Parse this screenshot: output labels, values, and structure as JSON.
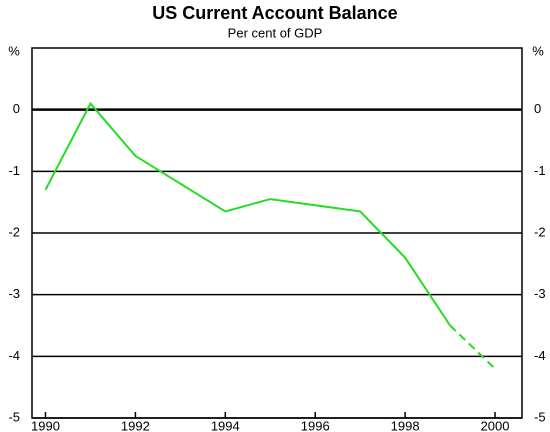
{
  "chart_data": {
    "type": "line",
    "title": "US Current Account Balance",
    "subtitle": "Per cent of GDP",
    "y_unit": "%",
    "x": [
      1990,
      1991,
      1992,
      1993,
      1994,
      1995,
      1996,
      1997,
      1998,
      1999,
      2000
    ],
    "series": [
      {
        "color": "#22dd22",
        "dash": false,
        "values": [
          -1.3,
          0.1,
          -0.75,
          -1.2,
          -1.65,
          -1.45,
          -1.55,
          -1.65,
          -2.4,
          -3.5,
          null
        ]
      },
      {
        "color": "#22dd22",
        "dash": true,
        "values": [
          null,
          null,
          null,
          null,
          null,
          null,
          null,
          null,
          null,
          -3.5,
          -4.2
        ]
      }
    ],
    "xlim": [
      1989.7,
      2000.6
    ],
    "xticks": [
      1990,
      1992,
      1994,
      1996,
      1998,
      2000
    ],
    "ylim": [
      -5,
      1
    ],
    "yticks": [
      0,
      -1,
      -2,
      -3,
      -4,
      -5
    ],
    "grid": true
  }
}
